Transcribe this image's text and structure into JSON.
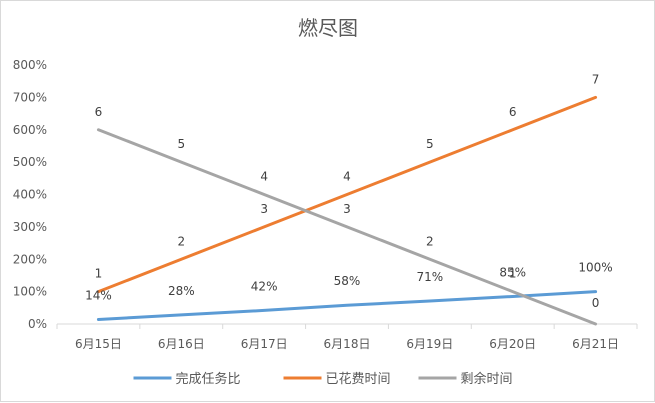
{
  "chart_data": {
    "type": "line",
    "title": "燃尽图",
    "categories": [
      "6月15日",
      "6月16日",
      "6月17日",
      "6月18日",
      "6月19日",
      "6月20日",
      "6月21日"
    ],
    "ylim": [
      0,
      8
    ],
    "yticks": [
      "0%",
      "100%",
      "200%",
      "300%",
      "400%",
      "500%",
      "600%",
      "700%",
      "800%"
    ],
    "series": [
      {
        "name": "完成任务比",
        "color": "#5B9BD5",
        "values": [
          0.14,
          0.28,
          0.42,
          0.58,
          0.71,
          0.85,
          1.0
        ],
        "labels": [
          "14%",
          "28%",
          "42%",
          "58%",
          "71%",
          "85%",
          "100%"
        ]
      },
      {
        "name": "已花费时间",
        "color": "#ED7D31",
        "values": [
          1,
          2,
          3,
          4,
          5,
          6,
          7
        ],
        "labels": [
          "1",
          "2",
          "3",
          "4",
          "5",
          "6",
          "7"
        ]
      },
      {
        "name": "剩余时间",
        "color": "#A5A5A5",
        "values": [
          6,
          5,
          4,
          3,
          2,
          1,
          0
        ],
        "labels": [
          "6",
          "5",
          "4",
          "3",
          "2",
          "1",
          "0"
        ]
      }
    ],
    "grid": false,
    "legend": "bottom"
  }
}
